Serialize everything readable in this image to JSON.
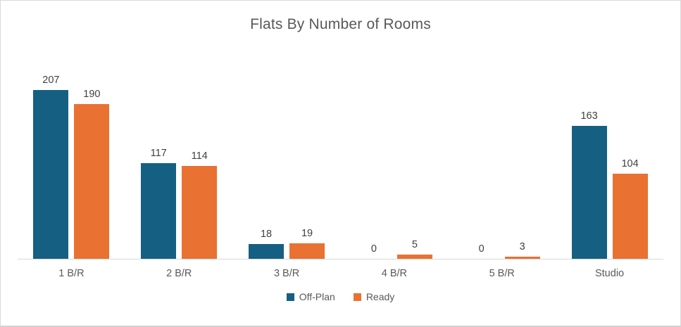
{
  "title": "Flats By Number of Rooms",
  "colors": {
    "off_plan": "#156082",
    "ready": "#E97132",
    "axis_line": "#D9D9D9",
    "title_text": "#595959",
    "value_label_text": "#404040",
    "category_text": "#595959",
    "frame_border": "#D9D9D9",
    "background": "#FFFFFF"
  },
  "legend": {
    "position": "bottom",
    "items": [
      {
        "label": "Off-Plan",
        "color": "#156082"
      },
      {
        "label": "Ready",
        "color": "#E97132"
      }
    ]
  },
  "chart_data": {
    "type": "bar",
    "title": "Flats By Number of Rooms",
    "categories": [
      "1 B/R",
      "2 B/R",
      "3 B/R",
      "4 B/R",
      "5 B/R",
      "Studio"
    ],
    "series": [
      {
        "name": "Off-Plan",
        "color": "#156082",
        "values": [
          207,
          117,
          18,
          0,
          0,
          163
        ]
      },
      {
        "name": "Ready",
        "color": "#E97132",
        "values": [
          190,
          114,
          19,
          5,
          3,
          104
        ]
      }
    ],
    "xlabel": "",
    "ylabel": "",
    "ylim": [
      0,
      207
    ],
    "grid": false,
    "data_labels": true,
    "legend_position": "bottom"
  }
}
